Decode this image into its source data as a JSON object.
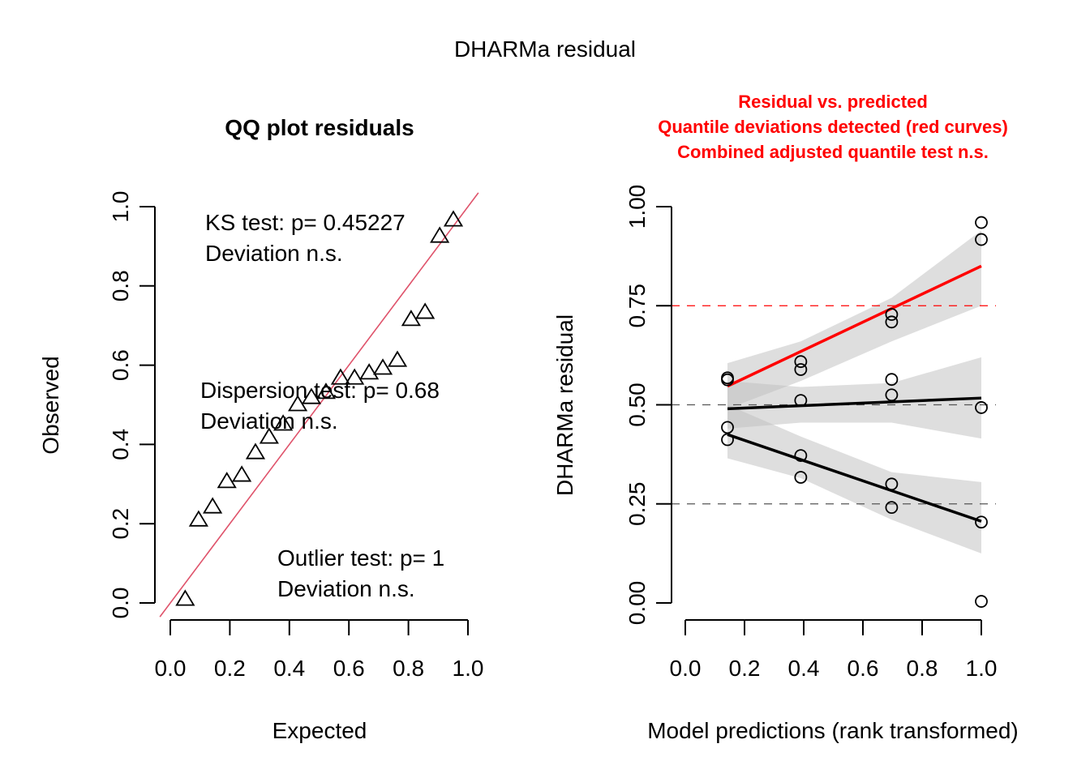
{
  "page_title": "DHARMa residual",
  "chart_data": [
    {
      "type": "scatter",
      "title": "QQ plot residuals",
      "xlabel": "Expected",
      "ylabel": "Observed",
      "xlim": [
        0,
        1
      ],
      "ylim": [
        0,
        1
      ],
      "xticks": [
        "0.0",
        "0.2",
        "0.4",
        "0.6",
        "0.8",
        "1.0"
      ],
      "yticks": [
        "0.0",
        "0.2",
        "0.4",
        "0.6",
        "0.8",
        "1.0"
      ],
      "xtick_values": [
        0,
        0.2,
        0.4,
        0.6,
        0.8,
        1.0
      ],
      "ytick_values": [
        0,
        0.2,
        0.4,
        0.6,
        0.8,
        1.0
      ],
      "marker": "triangle",
      "reference_line": {
        "slope": 1,
        "intercept": 0,
        "color": "#DF536B"
      },
      "points": [
        [
          0.05,
          0.01
        ],
        [
          0.095,
          0.21
        ],
        [
          0.142,
          0.243
        ],
        [
          0.19,
          0.307
        ],
        [
          0.24,
          0.323
        ],
        [
          0.286,
          0.38
        ],
        [
          0.332,
          0.419
        ],
        [
          0.379,
          0.452
        ],
        [
          0.428,
          0.501
        ],
        [
          0.474,
          0.519
        ],
        [
          0.523,
          0.532
        ],
        [
          0.572,
          0.568
        ],
        [
          0.619,
          0.568
        ],
        [
          0.668,
          0.581
        ],
        [
          0.714,
          0.593
        ],
        [
          0.763,
          0.613
        ],
        [
          0.809,
          0.716
        ],
        [
          0.856,
          0.734
        ],
        [
          0.905,
          0.926
        ],
        [
          0.951,
          0.967
        ]
      ],
      "annotations": [
        {
          "lines": [
            "KS test: p= 0.45227",
            "Deviation  n.s."
          ],
          "pos": "top-left"
        },
        {
          "lines": [
            "Dispersion test: p= 0.68",
            "Deviation  n.s."
          ],
          "pos": "middle-left"
        },
        {
          "lines": [
            "Outlier test: p= 1",
            "Deviation  n.s."
          ],
          "pos": "bottom-right"
        }
      ]
    },
    {
      "type": "scatter",
      "title_lines": [
        "Residual vs. predicted",
        "Quantile deviations detected (red curves)",
        "Combined adjusted quantile test n.s."
      ],
      "title_color": "#FF0000",
      "xlabel": "Model predictions (rank transformed)",
      "ylabel": "DHARMa residual",
      "xlim": [
        0,
        1
      ],
      "ylim": [
        0,
        1
      ],
      "xticks": [
        "0.0",
        "0.2",
        "0.4",
        "0.6",
        "0.8",
        "1.0"
      ],
      "yticks": [
        "0.00",
        "0.25",
        "0.50",
        "0.75",
        "1.00"
      ],
      "xtick_values": [
        0,
        0.2,
        0.4,
        0.6,
        0.8,
        1.0
      ],
      "ytick_values": [
        0,
        0.25,
        0.5,
        0.75,
        1.0
      ],
      "marker": "circle",
      "hlines": [
        {
          "y": 0.25,
          "color": "#555555"
        },
        {
          "y": 0.5,
          "color": "#555555"
        },
        {
          "y": 0.75,
          "color": "#FF0000"
        }
      ],
      "points": [
        [
          0.1425,
          0.568
        ],
        [
          0.1425,
          0.563
        ],
        [
          0.1425,
          0.443
        ],
        [
          0.1425,
          0.412
        ],
        [
          0.39,
          0.609
        ],
        [
          0.39,
          0.589
        ],
        [
          0.39,
          0.511
        ],
        [
          0.39,
          0.372
        ],
        [
          0.39,
          0.317
        ],
        [
          0.697,
          0.728
        ],
        [
          0.697,
          0.709
        ],
        [
          0.697,
          0.564
        ],
        [
          0.697,
          0.525
        ],
        [
          0.697,
          0.3
        ],
        [
          0.697,
          0.241
        ],
        [
          1.0,
          0.96
        ],
        [
          1.0,
          0.917
        ],
        [
          1.0,
          0.493
        ],
        [
          1.0,
          0.204
        ],
        [
          1.0,
          0.004
        ]
      ],
      "quantile_curves": [
        {
          "name": "q0.75",
          "color": "#FF0000",
          "x": [
            0.1425,
            1.0
          ],
          "y": [
            0.547,
            0.85
          ],
          "band_x": [
            0.1425,
            0.39,
            0.697,
            1.0
          ],
          "band_lo": [
            0.49,
            0.56,
            0.66,
            0.75
          ],
          "band_hi": [
            0.605,
            0.66,
            0.77,
            0.94
          ]
        },
        {
          "name": "q0.5",
          "color": "#000000",
          "x": [
            0.1425,
            1.0
          ],
          "y": [
            0.49,
            0.517
          ],
          "band_x": [
            0.1425,
            0.39,
            0.697,
            1.0
          ],
          "band_lo": [
            0.44,
            0.455,
            0.455,
            0.415
          ],
          "band_hi": [
            0.56,
            0.545,
            0.555,
            0.62
          ]
        },
        {
          "name": "q0.25",
          "color": "#000000",
          "x": [
            0.1425,
            1.0
          ],
          "y": [
            0.425,
            0.206
          ],
          "band_x": [
            0.1425,
            0.39,
            0.697,
            1.0
          ],
          "band_lo": [
            0.365,
            0.315,
            0.21,
            0.125
          ],
          "band_hi": [
            0.5,
            0.42,
            0.33,
            0.305
          ]
        }
      ]
    }
  ]
}
